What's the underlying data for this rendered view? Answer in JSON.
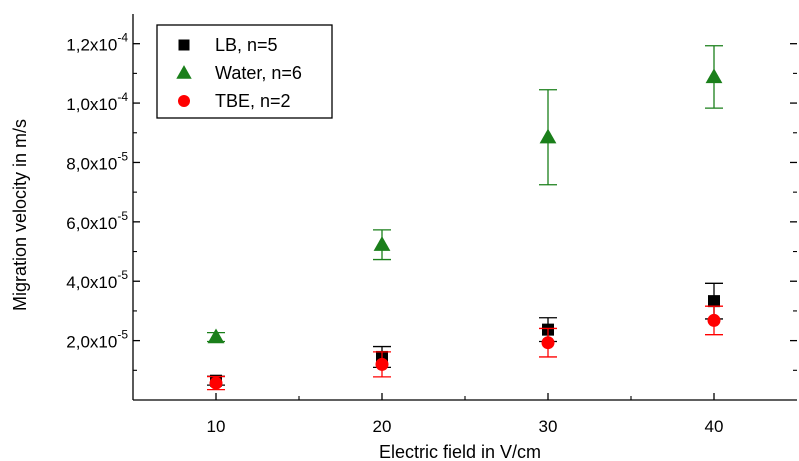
{
  "chart_data": {
    "type": "scatter",
    "xlabel": "Electric field in V/cm",
    "ylabel": "Migration velocity in m/s",
    "xlim": [
      5,
      45
    ],
    "ylim": [
      0,
      0.00013
    ],
    "x_ticks": [
      10,
      20,
      30,
      40
    ],
    "x_tick_labels": [
      "10",
      "20",
      "30",
      "40"
    ],
    "y_ticks": [
      2e-05,
      4e-05,
      6e-05,
      8e-05,
      0.0001,
      0.00012
    ],
    "y_tick_labels": [
      {
        "mantissa": "2,0x10",
        "exponent": "-5"
      },
      {
        "mantissa": "4,0x10",
        "exponent": "-5"
      },
      {
        "mantissa": "6,0x10",
        "exponent": "-5"
      },
      {
        "mantissa": "8,0x10",
        "exponent": "-5"
      },
      {
        "mantissa": "1,0x10",
        "exponent": "-4"
      },
      {
        "mantissa": "1,2x10",
        "exponent": "-4"
      }
    ],
    "grid": false,
    "legend_position": "top-left",
    "series": [
      {
        "name": "LB, n=5",
        "marker": "square",
        "color": "#000000",
        "x": [
          10,
          20,
          30,
          40
        ],
        "y": [
          6.5e-06,
          1.45e-05,
          2.37e-05,
          3.33e-05
        ],
        "yerr": [
          1.5e-06,
          3.5e-06,
          4e-06,
          6e-06
        ]
      },
      {
        "name": "Water, n=6",
        "marker": "triangle",
        "color": "#1a7f1a",
        "x": [
          10,
          20,
          30,
          40
        ],
        "y": [
          2.12e-05,
          5.23e-05,
          8.85e-05,
          0.0001088
        ],
        "yerr": [
          1.5e-06,
          5e-06,
          1.6e-05,
          1.05e-05
        ]
      },
      {
        "name": "TBE, n=2",
        "marker": "circle",
        "color": "#ff0000",
        "x": [
          10,
          20,
          30,
          40
        ],
        "y": [
          5.7e-06,
          1.2e-05,
          1.93e-05,
          2.68e-05
        ],
        "yerr": [
          2.2e-06,
          4.2e-06,
          4.8e-06,
          4.8e-06
        ]
      }
    ]
  }
}
